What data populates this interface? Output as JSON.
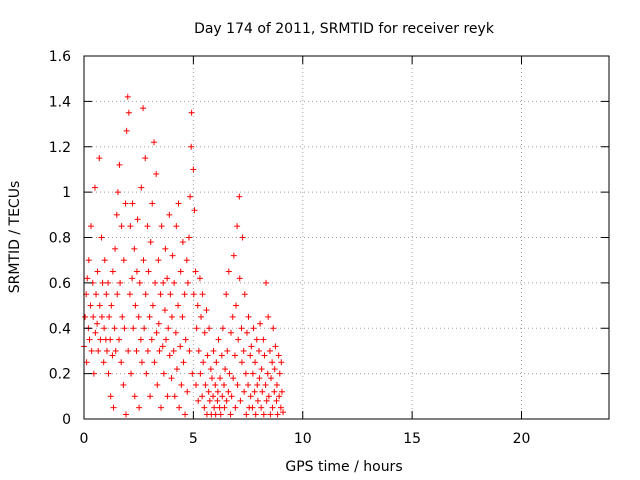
{
  "chart_data": {
    "type": "scatter",
    "title": "Day 174 of 2011, SRMTID for receiver reyk",
    "xlabel": "GPS time / hours",
    "ylabel": "SRMTID / TECUs",
    "xlim": [
      0,
      24
    ],
    "ylim": [
      0,
      1.6
    ],
    "xticks": [
      "0",
      "5",
      "10",
      "15",
      "20"
    ],
    "yticks": [
      "0",
      "0.2",
      "0.4",
      "0.6",
      "0.8",
      "1",
      "1.2",
      "1.4",
      "1.6"
    ],
    "grid": true,
    "marker": "+",
    "color": "#ff0000",
    "series": [
      {
        "points": [
          [
            0.0,
            0.32
          ],
          [
            0.05,
            0.45
          ],
          [
            0.1,
            0.55
          ],
          [
            0.12,
            0.25
          ],
          [
            0.15,
            0.62
          ],
          [
            0.2,
            0.4
          ],
          [
            0.22,
            0.7
          ],
          [
            0.25,
            0.35
          ],
          [
            0.3,
            0.5
          ],
          [
            0.32,
            0.85
          ],
          [
            0.35,
            0.3
          ],
          [
            0.4,
            0.6
          ],
          [
            0.42,
            0.45
          ],
          [
            0.45,
            0.2
          ],
          [
            0.5,
            1.02
          ],
          [
            0.52,
            0.38
          ],
          [
            0.55,
            0.55
          ],
          [
            0.6,
            0.42
          ],
          [
            0.62,
            0.65
          ],
          [
            0.65,
            0.3
          ],
          [
            0.7,
            1.15
          ],
          [
            0.72,
            0.5
          ],
          [
            0.75,
            0.35
          ],
          [
            0.8,
            0.8
          ],
          [
            0.82,
            0.45
          ],
          [
            0.85,
            0.6
          ],
          [
            0.9,
            0.25
          ],
          [
            0.92,
            0.4
          ],
          [
            0.95,
            0.7
          ],
          [
            1.0,
            0.35
          ],
          [
            1.02,
            0.55
          ],
          [
            1.05,
            0.3
          ],
          [
            1.1,
            0.6
          ],
          [
            1.12,
            0.2
          ],
          [
            1.15,
            0.45
          ],
          [
            1.2,
            0.35
          ],
          [
            1.22,
            0.1
          ],
          [
            1.25,
            0.5
          ],
          [
            1.3,
            0.28
          ],
          [
            1.32,
            0.65
          ],
          [
            1.35,
            0.05
          ],
          [
            1.4,
            0.4
          ],
          [
            1.42,
            0.75
          ],
          [
            1.45,
            0.3
          ],
          [
            1.5,
            0.9
          ],
          [
            1.52,
            0.55
          ],
          [
            1.55,
            1.0
          ],
          [
            1.6,
            0.35
          ],
          [
            1.62,
            1.12
          ],
          [
            1.65,
            0.6
          ],
          [
            1.7,
            0.25
          ],
          [
            1.72,
            0.85
          ],
          [
            1.75,
            0.45
          ],
          [
            1.8,
            0.15
          ],
          [
            1.82,
            0.7
          ],
          [
            1.85,
            0.4
          ],
          [
            1.9,
            0.95
          ],
          [
            1.92,
            0.02
          ],
          [
            1.95,
            1.27
          ],
          [
            2.0,
            1.42
          ],
          [
            2.02,
            0.3
          ],
          [
            2.05,
            1.35
          ],
          [
            2.1,
            0.55
          ],
          [
            2.12,
            0.85
          ],
          [
            2.15,
            0.2
          ],
          [
            2.2,
            0.62
          ],
          [
            2.22,
            0.95
          ],
          [
            2.25,
            0.4
          ],
          [
            2.3,
            0.75
          ],
          [
            2.32,
            0.1
          ],
          [
            2.35,
            0.5
          ],
          [
            2.4,
            0.3
          ],
          [
            2.42,
            0.65
          ],
          [
            2.45,
            0.88
          ],
          [
            2.5,
            0.45
          ],
          [
            2.52,
            0.05
          ],
          [
            2.55,
            0.6
          ],
          [
            2.6,
            0.35
          ],
          [
            2.62,
            1.02
          ],
          [
            2.65,
            0.25
          ],
          [
            2.7,
            1.37
          ],
          [
            2.72,
            0.7
          ],
          [
            2.75,
            0.4
          ],
          [
            2.8,
            1.15
          ],
          [
            2.82,
            0.55
          ],
          [
            2.85,
            0.2
          ],
          [
            2.9,
            0.85
          ],
          [
            2.92,
            0.3
          ],
          [
            2.95,
            0.65
          ],
          [
            3.0,
            0.45
          ],
          [
            3.02,
            0.1
          ],
          [
            3.05,
            0.78
          ],
          [
            3.1,
            0.35
          ],
          [
            3.12,
            0.95
          ],
          [
            3.15,
            0.5
          ],
          [
            3.2,
            1.22
          ],
          [
            3.22,
            0.25
          ],
          [
            3.25,
            0.6
          ],
          [
            3.3,
            1.08
          ],
          [
            3.32,
            0.38
          ],
          [
            3.35,
            0.15
          ],
          [
            3.4,
            0.7
          ],
          [
            3.42,
            0.42
          ],
          [
            3.45,
            0.3
          ],
          [
            3.5,
            0.55
          ],
          [
            3.52,
            0.05
          ],
          [
            3.55,
            0.85
          ],
          [
            3.6,
            0.32
          ],
          [
            3.62,
            0.6
          ],
          [
            3.65,
            0.2
          ],
          [
            3.7,
            0.48
          ],
          [
            3.72,
            0.75
          ],
          [
            3.75,
            0.35
          ],
          [
            3.8,
            0.62
          ],
          [
            3.82,
            0.1
          ],
          [
            3.85,
            0.4
          ],
          [
            3.9,
            0.9
          ],
          [
            3.92,
            0.28
          ],
          [
            3.95,
            0.55
          ],
          [
            4.0,
            0.18
          ],
          [
            4.02,
            0.45
          ],
          [
            4.05,
            0.72
          ],
          [
            4.1,
            0.3
          ],
          [
            4.12,
            0.6
          ],
          [
            4.15,
            0.1
          ],
          [
            4.2,
            0.38
          ],
          [
            4.22,
            0.85
          ],
          [
            4.25,
            0.22
          ],
          [
            4.3,
            0.5
          ],
          [
            4.32,
            0.95
          ],
          [
            4.35,
            0.05
          ],
          [
            4.4,
            0.32
          ],
          [
            4.42,
            0.65
          ],
          [
            4.45,
            0.15
          ],
          [
            4.5,
            0.45
          ],
          [
            4.52,
            0.78
          ],
          [
            4.55,
            0.25
          ],
          [
            4.6,
            0.55
          ],
          [
            4.62,
            0.02
          ],
          [
            4.65,
            0.35
          ],
          [
            4.7,
            0.7
          ],
          [
            4.72,
            0.12
          ],
          [
            4.75,
            0.6
          ],
          [
            4.8,
            0.8
          ],
          [
            4.82,
            0.3
          ],
          [
            4.85,
            0.98
          ],
          [
            4.9,
            1.2
          ],
          [
            4.92,
            1.35
          ],
          [
            4.95,
            0.2
          ],
          [
            5.0,
            1.1
          ],
          [
            5.02,
            0.55
          ],
          [
            5.05,
            0.92
          ],
          [
            5.1,
            0.65
          ],
          [
            5.12,
            0.15
          ],
          [
            5.15,
            0.4
          ],
          [
            5.2,
            0.5
          ],
          [
            5.22,
            0.08
          ],
          [
            5.25,
            0.3
          ],
          [
            5.3,
            0.62
          ],
          [
            5.32,
            0.2
          ],
          [
            5.35,
            0.45
          ],
          [
            5.4,
            0.1
          ],
          [
            5.42,
            0.55
          ],
          [
            5.45,
            0.25
          ],
          [
            5.5,
            0.05
          ],
          [
            5.52,
            0.38
          ],
          [
            5.55,
            0.15
          ],
          [
            5.6,
            0.48
          ],
          [
            5.62,
            0.02
          ],
          [
            5.65,
            0.28
          ],
          [
            5.7,
            0.12
          ],
          [
            5.72,
            0.4
          ],
          [
            5.75,
            0.08
          ],
          [
            5.8,
            0.22
          ],
          [
            5.82,
            0.02
          ],
          [
            5.85,
            0.18
          ],
          [
            5.9,
            0.1
          ],
          [
            5.92,
            0.3
          ],
          [
            5.95,
            0.05
          ],
          [
            6.0,
            0.15
          ],
          [
            6.02,
            0.02
          ],
          [
            6.05,
            0.25
          ],
          [
            6.1,
            0.08
          ],
          [
            6.12,
            0.12
          ],
          [
            6.15,
            0.35
          ],
          [
            6.2,
            0.05
          ],
          [
            6.22,
            0.18
          ],
          [
            6.25,
            0.02
          ],
          [
            6.3,
            0.28
          ],
          [
            6.32,
            0.1
          ],
          [
            6.35,
            0.4
          ],
          [
            6.4,
            0.15
          ],
          [
            6.42,
            0.05
          ],
          [
            6.45,
            0.22
          ],
          [
            6.5,
            0.55
          ],
          [
            6.52,
            0.08
          ],
          [
            6.55,
            0.3
          ],
          [
            6.6,
            0.12
          ],
          [
            6.62,
            0.65
          ],
          [
            6.65,
            0.2
          ],
          [
            6.7,
            0.02
          ],
          [
            6.72,
            0.38
          ],
          [
            6.75,
            0.1
          ],
          [
            6.8,
            0.45
          ],
          [
            6.82,
            0.18
          ],
          [
            6.85,
            0.72
          ],
          [
            6.9,
            0.28
          ],
          [
            6.92,
            0.05
          ],
          [
            6.95,
            0.5
          ],
          [
            7.0,
            0.85
          ],
          [
            7.02,
            0.15
          ],
          [
            7.05,
            0.35
          ],
          [
            7.1,
            0.98
          ],
          [
            7.12,
            0.62
          ],
          [
            7.15,
            0.08
          ],
          [
            7.2,
            0.4
          ],
          [
            7.22,
            0.25
          ],
          [
            7.25,
            0.8
          ],
          [
            7.3,
            0.3
          ],
          [
            7.32,
            0.12
          ],
          [
            7.35,
            0.55
          ],
          [
            7.4,
            0.2
          ],
          [
            7.42,
            0.02
          ],
          [
            7.45,
            0.38
          ],
          [
            7.5,
            0.15
          ],
          [
            7.52,
            0.45
          ],
          [
            7.55,
            0.05
          ],
          [
            7.6,
            0.28
          ],
          [
            7.62,
            0.1
          ],
          [
            7.65,
            0.32
          ],
          [
            7.7,
            0.05
          ],
          [
            7.72,
            0.2
          ],
          [
            7.75,
            0.4
          ],
          [
            7.8,
            0.12
          ],
          [
            7.82,
            0.25
          ],
          [
            7.85,
            0.02
          ],
          [
            7.9,
            0.35
          ],
          [
            7.92,
            0.15
          ],
          [
            7.95,
            0.08
          ],
          [
            8.0,
            0.3
          ],
          [
            8.02,
            0.18
          ],
          [
            8.05,
            0.42
          ],
          [
            8.1,
            0.05
          ],
          [
            8.12,
            0.22
          ],
          [
            8.15,
            0.12
          ],
          [
            8.2,
            0.35
          ],
          [
            8.22,
            0.02
          ],
          [
            8.25,
            0.28
          ],
          [
            8.3,
            0.15
          ],
          [
            8.32,
            0.6
          ],
          [
            8.35,
            0.08
          ],
          [
            8.4,
            0.2
          ],
          [
            8.42,
            0.45
          ],
          [
            8.45,
            0.1
          ],
          [
            8.5,
            0.3
          ],
          [
            8.52,
            0.02
          ],
          [
            8.55,
            0.18
          ],
          [
            8.6,
            0.25
          ],
          [
            8.62,
            0.05
          ],
          [
            8.65,
            0.4
          ],
          [
            8.7,
            0.12
          ],
          [
            8.72,
            0.22
          ],
          [
            8.75,
            0.32
          ],
          [
            8.8,
            0.08
          ],
          [
            8.82,
            0.15
          ],
          [
            8.85,
            0.02
          ],
          [
            8.9,
            0.28
          ],
          [
            8.92,
            0.1
          ],
          [
            8.95,
            0.2
          ],
          [
            9.0,
            0.05
          ],
          [
            9.02,
            0.25
          ],
          [
            9.05,
            0.12
          ],
          [
            9.1,
            0.03
          ]
        ]
      }
    ]
  }
}
